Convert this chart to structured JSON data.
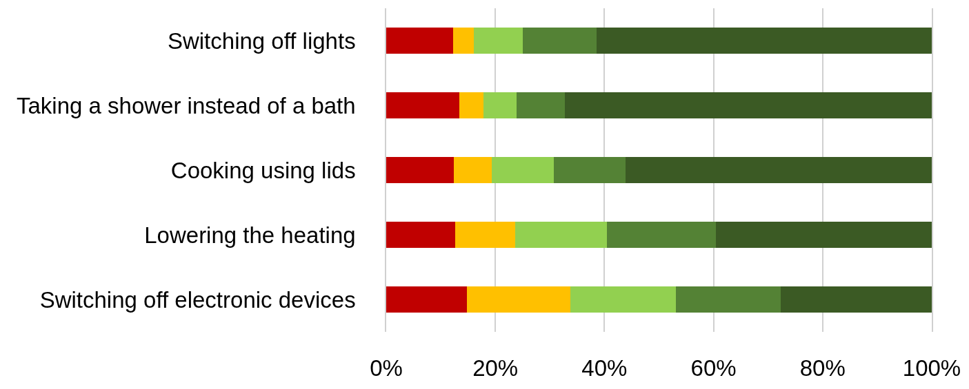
{
  "chart_data": {
    "type": "bar",
    "orientation": "horizontal",
    "stacked": true,
    "categories": [
      "Switching off lights",
      "Taking a shower instead of a bath",
      "Cooking using lids",
      "Lowering the heating",
      "Switching off electronic devices"
    ],
    "series": [
      {
        "color": "#c00000",
        "values": [
          12.2,
          13.4,
          12.4,
          12.7,
          14.8
        ]
      },
      {
        "color": "#ffc000",
        "values": [
          3.8,
          4.4,
          6.9,
          10.9,
          19.0
        ]
      },
      {
        "color": "#92d050",
        "values": [
          9.0,
          6.1,
          11.4,
          16.8,
          19.3
        ]
      },
      {
        "color": "#548235",
        "values": [
          13.5,
          8.9,
          13.2,
          20.0,
          19.2
        ]
      },
      {
        "color": "#3b5a24",
        "values": [
          61.5,
          67.2,
          56.1,
          39.6,
          27.7
        ]
      }
    ],
    "xlim": [
      0,
      100
    ],
    "xticks": [
      {
        "value": 0,
        "label": "0%"
      },
      {
        "value": 20,
        "label": "20%"
      },
      {
        "value": 40,
        "label": "40%"
      },
      {
        "value": 60,
        "label": "60%"
      },
      {
        "value": 80,
        "label": "80%"
      },
      {
        "value": 100,
        "label": "100%"
      }
    ],
    "grid": "x"
  }
}
